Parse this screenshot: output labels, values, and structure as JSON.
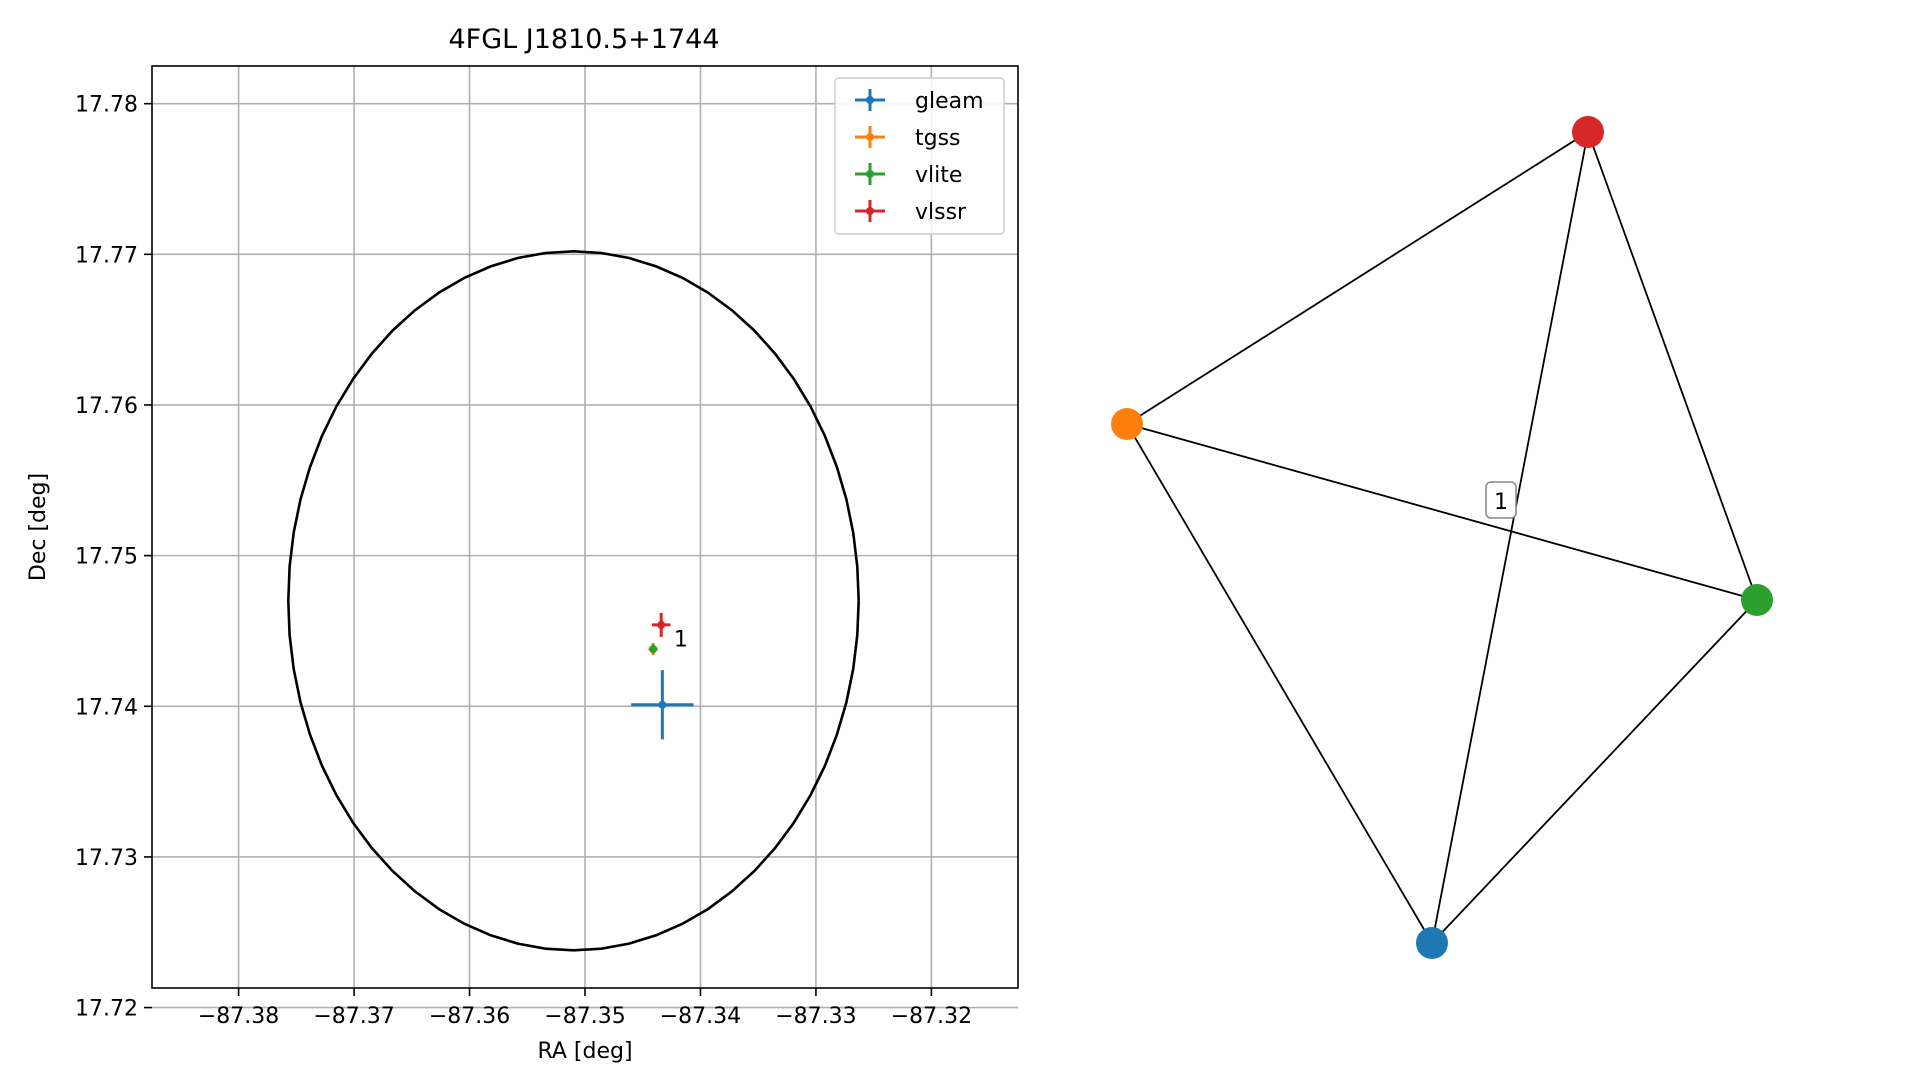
{
  "chart_data": [
    {
      "type": "scatter",
      "title": "4FGL J1810.5+1744",
      "xlabel": "RA [deg]",
      "ylabel": "Dec [deg]",
      "xlim": [
        -87.3875,
        -87.3125
      ],
      "ylim": [
        17.7213,
        17.7825
      ],
      "xticks": [
        -87.38,
        -87.37,
        -87.36,
        -87.35,
        -87.34,
        -87.33,
        -87.32
      ],
      "xtick_labels": [
        "−87.38",
        "−87.37",
        "−87.36",
        "−87.35",
        "−87.34",
        "−87.33",
        "−87.32"
      ],
      "yticks": [
        17.72,
        17.73,
        17.74,
        17.75,
        17.76,
        17.77,
        17.78
      ],
      "ytick_labels": [
        "17.72",
        "17.73",
        "17.74",
        "17.75",
        "17.76",
        "17.77",
        "17.78"
      ],
      "grid": true,
      "legend": "upper-right",
      "series": [
        {
          "name": "gleam",
          "color": "#1f77b4",
          "x": -87.3433,
          "y": 17.7401,
          "xerr": 0.0027,
          "yerr": 0.0023
        },
        {
          "name": "tgss",
          "color": "#ff7f0e",
          "x": -87.3441,
          "y": 17.7438,
          "xerr": 0.0004,
          "yerr": 0.0004
        },
        {
          "name": "vlite",
          "color": "#2ca02c",
          "x": -87.3441,
          "y": 17.7438,
          "xerr": 0.0003,
          "yerr": 0.0003
        },
        {
          "name": "vlssr",
          "color": "#d62728",
          "x": -87.3434,
          "y": 17.7454,
          "xerr": 0.0008,
          "yerr": 0.0008
        }
      ],
      "circle": {
        "center_x": -87.351,
        "center_y": 17.747,
        "radius_x": 0.0247,
        "radius_y": 0.0232,
        "color": "#000000"
      },
      "annotations": [
        {
          "text": "1",
          "x": -87.3423,
          "y": 17.7445
        }
      ]
    },
    {
      "type": "graph",
      "nodes": [
        {
          "id": "gleam",
          "color": "#1f77b4"
        },
        {
          "id": "tgss",
          "color": "#ff7f0e"
        },
        {
          "id": "vlite",
          "color": "#2ca02c"
        },
        {
          "id": "vlssr",
          "color": "#d62728"
        }
      ],
      "edges": [
        [
          "tgss",
          "vlssr"
        ],
        [
          "tgss",
          "vlite"
        ],
        [
          "tgss",
          "gleam"
        ],
        [
          "vlssr",
          "gleam"
        ],
        [
          "vlssr",
          "vlite"
        ],
        [
          "gleam",
          "vlite"
        ]
      ],
      "edge_label": {
        "text": "1"
      }
    }
  ]
}
